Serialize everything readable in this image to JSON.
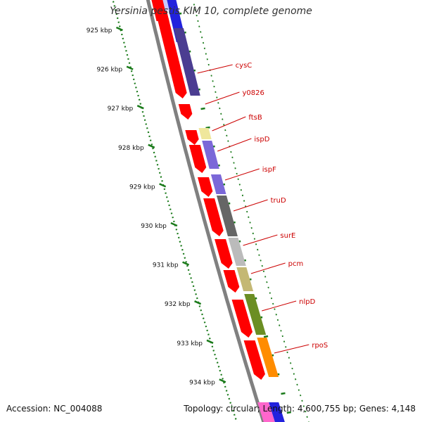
{
  "map": {
    "title": "Yersinia pestis KIM 10, complete genome",
    "accession_label": "Accession:",
    "accession": "NC_004088",
    "topology_label": "Topology:",
    "topology": "circular;",
    "length_label": "Length:",
    "length": "4,600,755 bp;",
    "genes_label": "Genes:",
    "genes": "4,148"
  },
  "ruler": {
    "ticks": [
      "925 kbp",
      "926 kbp",
      "927 kbp",
      "928 kbp",
      "929 kbp",
      "930 kbp",
      "931 kbp",
      "932 kbp",
      "933 kbp",
      "934 kbp"
    ]
  },
  "labels": [
    "cysC",
    "y0826",
    "ftsB",
    "ispD",
    "ispF",
    "truD",
    "surE",
    "pcm",
    "nlpD",
    "rpoS"
  ],
  "colors": {
    "backbone": "#808080",
    "orf": "#ff0000",
    "ruler": "#1a7a1a",
    "label": "#cc0000",
    "cysC": "#4b3d91",
    "ftsB": "#efe79c",
    "ispD": "#7b68d8",
    "ispF": "#7b68d8",
    "truD": "#666666",
    "surE": "#bbbbbb",
    "pcm": "#c4b874",
    "nlpD": "#6b8e23",
    "rpoS": "#ff8c00"
  }
}
